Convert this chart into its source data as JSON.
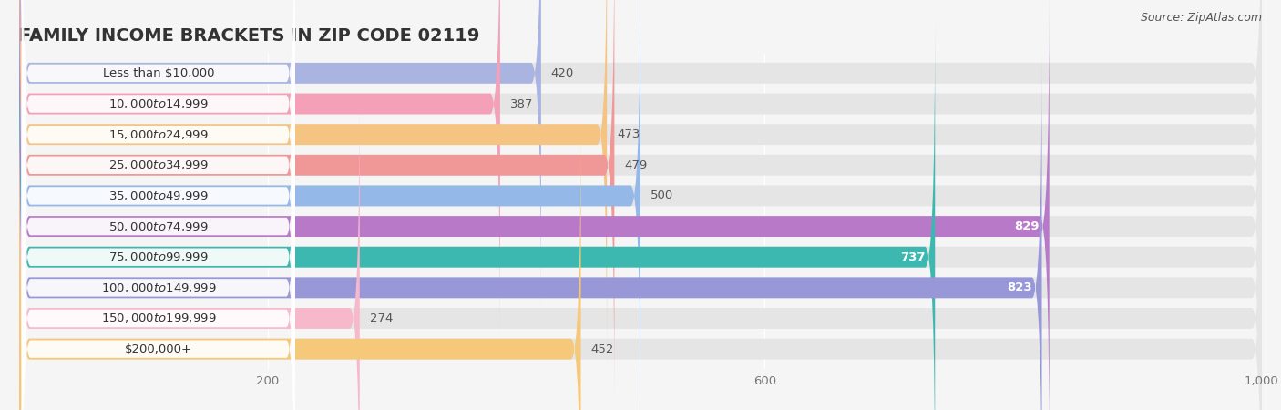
{
  "title": "FAMILY INCOME BRACKETS IN ZIP CODE 02119",
  "source": "Source: ZipAtlas.com",
  "categories": [
    "Less than $10,000",
    "$10,000 to $14,999",
    "$15,000 to $24,999",
    "$25,000 to $34,999",
    "$35,000 to $49,999",
    "$50,000 to $74,999",
    "$75,000 to $99,999",
    "$100,000 to $149,999",
    "$150,000 to $199,999",
    "$200,000+"
  ],
  "values": [
    420,
    387,
    473,
    479,
    500,
    829,
    737,
    823,
    274,
    452
  ],
  "bar_colors": [
    "#aab4e0",
    "#f4a0b8",
    "#f5c482",
    "#f09898",
    "#94b8e8",
    "#b87ac8",
    "#3db8b0",
    "#9898d8",
    "#f8b8cc",
    "#f5c87a"
  ],
  "label_pill_colors": [
    "#aab4e0",
    "#f4a0b8",
    "#f5c482",
    "#f09898",
    "#94b8e8",
    "#b87ac8",
    "#3db8b0",
    "#9898d8",
    "#f8b8cc",
    "#f5c87a"
  ],
  "value_inside": [
    false,
    false,
    false,
    false,
    false,
    true,
    true,
    true,
    false,
    false
  ],
  "xlim_data": [
    0,
    1000
  ],
  "xticks": [
    200,
    600,
    1000
  ],
  "xtick_labels": [
    "200",
    "600",
    "1,000"
  ],
  "background_color": "#f5f5f5",
  "bar_bg_color": "#e5e5e5",
  "title_fontsize": 14,
  "label_fontsize": 9.5,
  "value_fontsize": 9.5,
  "tick_fontsize": 9.5,
  "source_fontsize": 9
}
